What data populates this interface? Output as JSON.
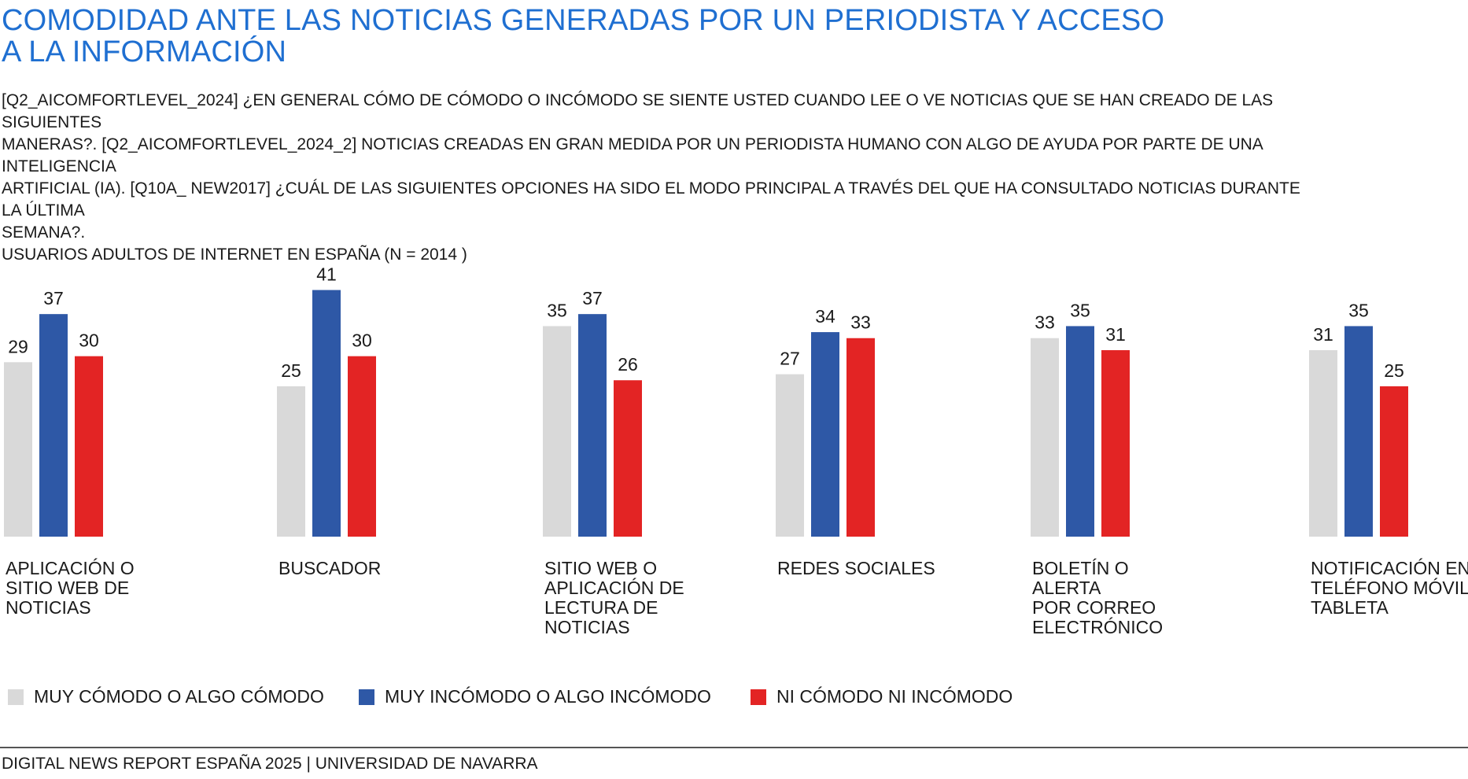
{
  "title": "COMODIDAD ANTE LAS NOTICIAS GENERADAS POR UN PERIODISTA Y ACCESO A LA INFORMACIÓN",
  "subtitle_lines": [
    "[Q2_AICOMFORTLEVEL_2024] ¿EN GENERAL CÓMO DE CÓMODO O INCÓMODO SE SIENTE USTED CUANDO LEE O VE NOTICIAS QUE SE HAN CREADO DE LAS SIGUIENTES",
    "MANERAS?. [Q2_AICOMFORTLEVEL_2024_2] NOTICIAS CREADAS EN GRAN MEDIDA POR UN PERIODISTA HUMANO CON ALGO DE AYUDA POR PARTE DE UNA INTELIGENCIA",
    "ARTIFICIAL (IA). [Q10A_ NEW2017] ¿CUÁL DE LAS SIGUIENTES OPCIONES HA SIDO EL MODO PRINCIPAL A TRAVÉS DEL QUE HA CONSULTADO NOTICIAS DURANTE LA ÚLTIMA",
    "SEMANA?.",
    "USUARIOS ADULTOS DE INTERNET EN ESPAÑA (N = 2014 )"
  ],
  "footer": "DIGITAL NEWS REPORT ESPAÑA 2025 | UNIVERSIDAD DE NAVARRA",
  "chart_data": {
    "type": "bar",
    "categories": [
      "APLICACIÓN O SITIO WEB DE NOTICIAS",
      "BUSCADOR",
      "SITIO WEB O APLICACIÓN DE LECTURA DE NOTICIAS",
      "REDES SOCIALES",
      "BOLETÍN O ALERTA POR CORREO ELECTRÓNICO",
      "NOTIFICACIÓN EN TELÉFONO MÓVIL/ TABLETA"
    ],
    "category_lines": [
      [
        "APLICACIÓN O",
        "SITIO WEB DE",
        "NOTICIAS"
      ],
      [
        "BUSCADOR"
      ],
      [
        "SITIO WEB O",
        "APLICACIÓN DE",
        "LECTURA DE",
        "NOTICIAS"
      ],
      [
        "REDES SOCIALES"
      ],
      [
        "BOLETÍN O ALERTA",
        "POR CORREO",
        "ELECTRÓNICO"
      ],
      [
        "NOTIFICACIÓN EN",
        "TELÉFONO MÓVIL/",
        "TABLETA"
      ]
    ],
    "series": [
      {
        "name": "MUY CÓMODO O ALGO CÓMODO",
        "color": "#d9d9d9",
        "values": [
          29,
          25,
          35,
          27,
          33,
          31
        ]
      },
      {
        "name": "MUY INCÓMODO O ALGO INCÓMODO",
        "color": "#2e58a6",
        "values": [
          37,
          41,
          37,
          34,
          35,
          35
        ]
      },
      {
        "name": "NI CÓMODO NI INCÓMODO",
        "color": "#e32424",
        "values": [
          30,
          30,
          26,
          33,
          31,
          25
        ]
      }
    ],
    "ylim": [
      0,
      45
    ],
    "grid": false,
    "legend_position": "bottom-left",
    "data_labels": true
  }
}
